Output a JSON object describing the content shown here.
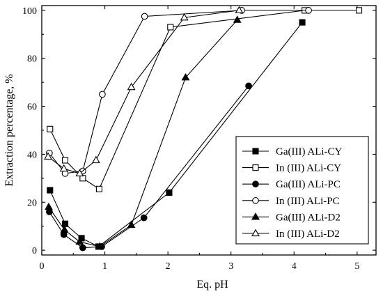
{
  "chart_data": {
    "type": "line",
    "xlabel": "Eq. pH",
    "ylabel": "Extraction percentage, %",
    "xlim": [
      0,
      5.3
    ],
    "ylim": [
      -2,
      102
    ],
    "xticks": [
      0,
      1,
      2,
      3,
      4,
      5
    ],
    "yticks": [
      0,
      20,
      40,
      60,
      80,
      100
    ],
    "grid": false,
    "legend_position": "bottom-right",
    "series": [
      {
        "name": "Ga(III) ALi-CY",
        "marker": "square",
        "filled": true,
        "x": [
          0.13,
          0.37,
          0.63,
          0.9,
          2.02,
          4.13
        ],
        "y": [
          25,
          11,
          5,
          1.5,
          24,
          95
        ]
      },
      {
        "name": "In (III) ALi-CY",
        "marker": "square",
        "filled": false,
        "x": [
          0.13,
          0.37,
          0.65,
          0.91,
          2.04,
          4.17,
          5.03
        ],
        "y": [
          50.5,
          37.5,
          30,
          25.5,
          93,
          100,
          100
        ]
      },
      {
        "name": "Ga(III) ALi-PC",
        "marker": "circle",
        "filled": true,
        "x": [
          0.12,
          0.35,
          0.65,
          0.95,
          1.62,
          3.28
        ],
        "y": [
          16,
          6.5,
          1,
          1.5,
          13.5,
          68.5
        ]
      },
      {
        "name": "In (III) ALi-PC",
        "marker": "circle",
        "filled": false,
        "x": [
          0.12,
          0.37,
          0.65,
          0.96,
          1.63,
          3.17,
          4.23
        ],
        "y": [
          40.5,
          32,
          33,
          65,
          97.5,
          100,
          100
        ]
      },
      {
        "name": "Ga(III) ALi-D2",
        "marker": "triangle",
        "filled": true,
        "x": [
          0.11,
          0.36,
          0.6,
          0.92,
          1.42,
          2.28,
          3.1
        ],
        "y": [
          18,
          8.5,
          3.5,
          1.5,
          10.5,
          72,
          96
        ]
      },
      {
        "name": "In (III) ALi-D2",
        "marker": "triangle",
        "filled": false,
        "x": [
          0.1,
          0.35,
          0.6,
          0.86,
          1.42,
          2.26,
          3.13
        ],
        "y": [
          39,
          34,
          32,
          37.5,
          68,
          97,
          100
        ]
      }
    ]
  }
}
